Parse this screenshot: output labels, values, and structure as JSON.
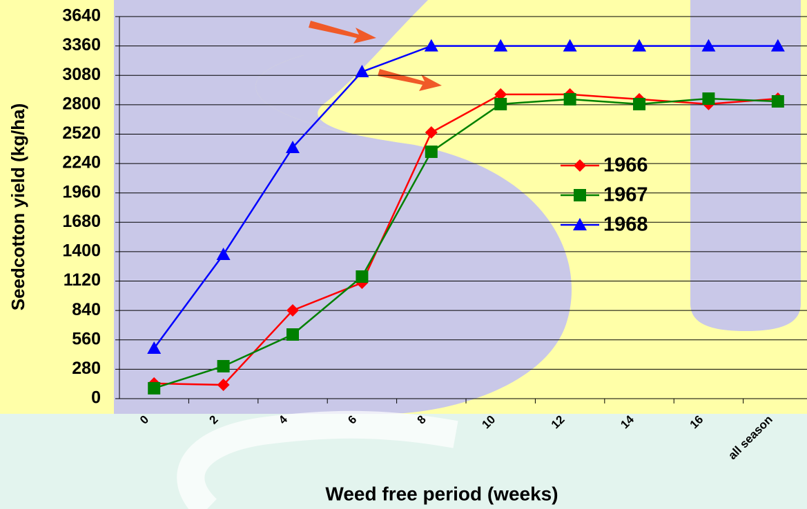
{
  "chart_data": {
    "type": "line",
    "x_label": "Weed free period (weeks)",
    "y_label": "Seedcotton yield (kg/ha)",
    "categories": [
      "0",
      "2",
      "4",
      "6",
      "8",
      "10",
      "12",
      "14",
      "16",
      "all season"
    ],
    "series": [
      {
        "name": "1966",
        "color": "#ff0000",
        "marker": "diamond",
        "values": [
          145,
          131,
          841,
          1104,
          2536,
          2898,
          2898,
          2852,
          2806,
          2858
        ]
      },
      {
        "name": "1967",
        "color": "#008000",
        "marker": "square",
        "values": [
          99,
          309,
          611,
          1163,
          2352,
          2806,
          2852,
          2806,
          2858,
          2832
        ]
      },
      {
        "name": "1968",
        "color": "#0000ff",
        "marker": "triangle",
        "values": [
          480,
          1373,
          2392,
          3114,
          3360,
          3360,
          3360,
          3360,
          3360,
          3360
        ]
      }
    ],
    "ylim": [
      0,
      3640
    ],
    "yticks": [
      0,
      280,
      560,
      840,
      1120,
      1400,
      1680,
      1960,
      2240,
      2520,
      2800,
      3080,
      3360,
      3640
    ],
    "grid": true
  }
}
